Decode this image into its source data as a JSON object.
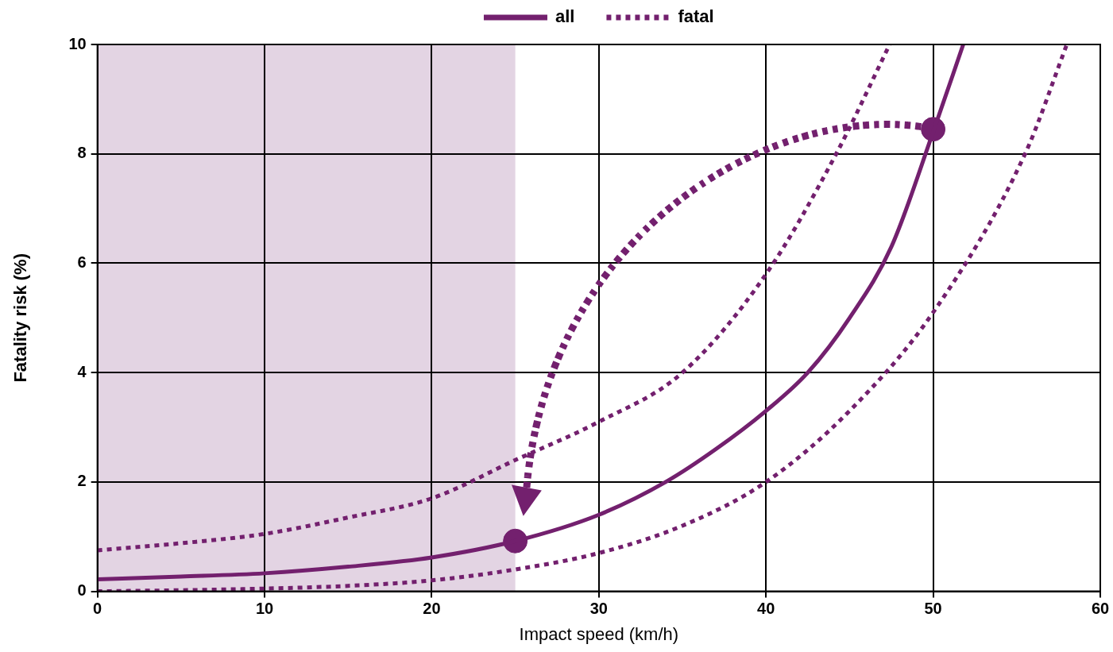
{
  "chart_data": {
    "type": "line",
    "xlabel": "Impact speed (km/h)",
    "ylabel": "Fatality risk (%)",
    "xlim": [
      0,
      60
    ],
    "ylim": [
      0,
      10
    ],
    "xticks": [
      0,
      10,
      20,
      30,
      40,
      50,
      60
    ],
    "yticks": [
      0,
      2,
      4,
      6,
      8,
      10
    ],
    "grid": true,
    "legend": "top",
    "bands": [
      {
        "axis": "x",
        "from": 0,
        "to": 25,
        "color": "#e3d4e3"
      }
    ],
    "series": [
      {
        "name": "all",
        "color": "#73206e",
        "line_style": "solid",
        "x": [
          0,
          5,
          10,
          15,
          20,
          25,
          30,
          34,
          37,
          40,
          42.5,
          45,
          47.5,
          50,
          51.8
        ],
        "values": [
          0.22,
          0.27,
          0.33,
          0.45,
          0.62,
          0.92,
          1.4,
          2.0,
          2.6,
          3.3,
          4.0,
          5.0,
          6.3,
          8.4,
          10
        ]
      },
      {
        "name": "fatal",
        "color": "#73206e",
        "line_style": "dotted",
        "x": [
          0,
          5,
          10,
          15,
          20,
          25,
          30,
          35,
          40,
          44.2,
          47.4
        ],
        "values": [
          0.75,
          0.88,
          1.05,
          1.35,
          1.7,
          2.4,
          3.1,
          4.0,
          5.8,
          8.0,
          10
        ]
      },
      {
        "color": "#73206e",
        "line_style": "dotted",
        "x": [
          0,
          5,
          10,
          15,
          20,
          25,
          30,
          35,
          40,
          45,
          50,
          55.5,
          58
        ],
        "values": [
          0,
          0.02,
          0.05,
          0.1,
          0.2,
          0.4,
          0.7,
          1.2,
          2.0,
          3.3,
          5.1,
          8.0,
          10
        ]
      },
      {
        "type": "scatter",
        "color": "#73206e",
        "marker": "circle",
        "x": [
          25,
          50
        ],
        "values": [
          0.92,
          8.45
        ]
      }
    ]
  }
}
